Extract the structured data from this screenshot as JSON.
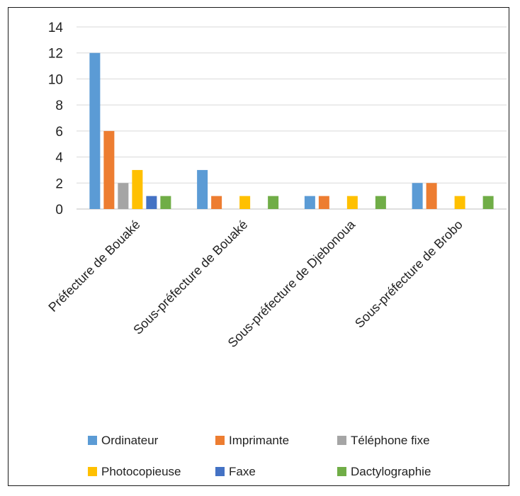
{
  "chart_data": {
    "type": "bar",
    "title": "",
    "xlabel": "",
    "ylabel": "",
    "ylim": [
      0,
      14
    ],
    "yticks": [
      0,
      2,
      4,
      6,
      8,
      10,
      12,
      14
    ],
    "grid": true,
    "legend_position": "bottom",
    "categories": [
      "Préfecture de Bouaké",
      "Sous-préfecture de Bouaké",
      "Sous-préfecture de Djebonoua",
      "Sous-préfecture de Brobo"
    ],
    "series": [
      {
        "name": "Ordinateur",
        "color": "#5b9bd5",
        "values": [
          12,
          3,
          1,
          2
        ]
      },
      {
        "name": "Imprimante",
        "color": "#ed7d31",
        "values": [
          6,
          1,
          1,
          2
        ]
      },
      {
        "name": "Téléphone fixe",
        "color": "#a5a5a5",
        "values": [
          2,
          0,
          0,
          0
        ]
      },
      {
        "name": "Photocopieuse",
        "color": "#ffc000",
        "values": [
          3,
          1,
          1,
          1
        ]
      },
      {
        "name": "Faxe",
        "color": "#4472c4",
        "values": [
          1,
          0,
          0,
          0
        ]
      },
      {
        "name": "Dactylographie",
        "color": "#70ad47",
        "values": [
          1,
          1,
          1,
          1
        ]
      }
    ]
  }
}
